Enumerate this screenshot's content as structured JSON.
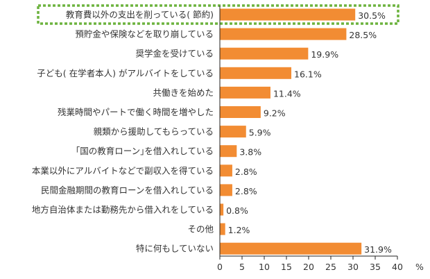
{
  "chart_data": {
    "type": "bar",
    "orientation": "horizontal",
    "categories": [
      "教育費以外の支出を削っている( 節約)",
      "預貯金や保険などを取り崩している",
      "奨学金を受けている",
      "子ども( 在学者本人) がアルバイトをしている",
      "共働きを始めた",
      "残業時間やパートで働く時間を増やした",
      "親類から援助してもらっている",
      "｢国の教育ローン｣を借入れしている",
      "本業以外にアルバイトなどで副収入を得ている",
      "民間金融期間の教育ローンを借入れしている",
      "地方自治体または勤務先から借入れをしている",
      "その他",
      "特に何もしていない"
    ],
    "values": [
      30.5,
      28.5,
      19.9,
      16.1,
      11.4,
      9.2,
      5.9,
      3.8,
      2.8,
      2.8,
      0.8,
      1.2,
      31.9
    ],
    "value_labels": [
      "30.5%",
      "28.5%",
      "19.9%",
      "16.1%",
      "11.4%",
      "9.2%",
      "5.9%",
      "3.8%",
      "2.8%",
      "2.8%",
      "0.8%",
      "1.2%",
      "31.9%"
    ],
    "xlim": [
      0,
      40
    ],
    "xticks": [
      "0",
      "5",
      "10",
      "15",
      "20",
      "25",
      "30",
      "35",
      "40"
    ],
    "xunit": "%",
    "highlighted_category_index": 0,
    "grid": false,
    "colors": {
      "bar": "#f28c33",
      "highlight_border": "#6db33f",
      "text": "#333333",
      "axis": "#222222"
    }
  }
}
